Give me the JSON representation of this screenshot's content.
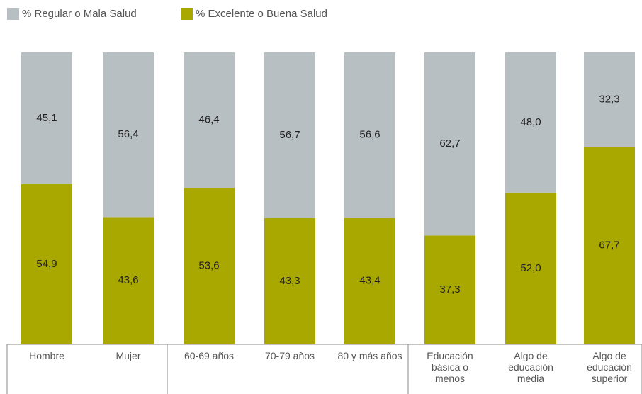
{
  "chart_data": {
    "type": "bar",
    "stacked": true,
    "categories": [
      "Hombre",
      "Mujer",
      "60-69 años",
      "70-79 años",
      "80 y más años",
      "Educación\nbásica o\nmenos",
      "Algo de\neducación\nmedia",
      "Algo de\neducación\nsuperior"
    ],
    "series": [
      {
        "name": "% Regular o Mala Salud",
        "color": "#b8bfc3",
        "values": [
          45.1,
          56.4,
          46.4,
          56.7,
          56.6,
          62.7,
          48.0,
          32.3
        ],
        "value_labels": [
          "45,1",
          "56,4",
          "46,4",
          "56,7",
          "56,6",
          "62,7",
          "48,0",
          "32,3"
        ]
      },
      {
        "name": "% Excelente o Buena Salud",
        "color": "#a9a800",
        "values": [
          54.9,
          43.6,
          53.6,
          43.3,
          43.4,
          37.3,
          52.0,
          67.7
        ],
        "value_labels": [
          "54,9",
          "43,6",
          "53,6",
          "43,3",
          "43,4",
          "37,3",
          "52,0",
          "67,7"
        ]
      }
    ]
  }
}
